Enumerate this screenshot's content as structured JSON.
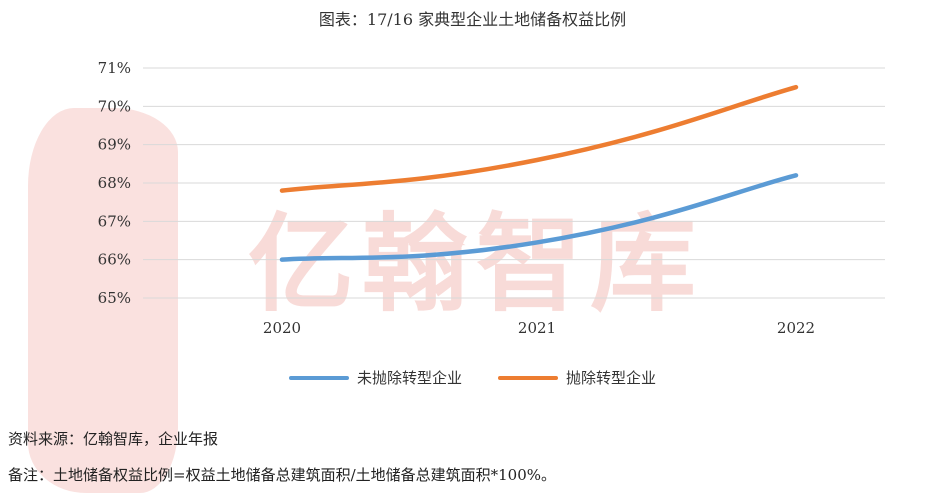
{
  "watermark": {
    "text": "亿翰智库"
  },
  "chart_data": {
    "type": "line",
    "title": "图表：17/16 家典型企业土地储备权益比例",
    "x": [
      "2020",
      "2021",
      "2022"
    ],
    "yticks": [
      "65%",
      "66%",
      "67%",
      "68%",
      "69%",
      "70%",
      "71%"
    ],
    "ylim": [
      65,
      71
    ],
    "grid": true,
    "legend_position": "bottom",
    "series": [
      {
        "name": "未抛除转型企业",
        "values": [
          66.0,
          66.45,
          68.2
        ],
        "color": "#5b9bd5"
      },
      {
        "name": "抛除转型企业",
        "values": [
          67.8,
          68.6,
          70.5
        ],
        "color": "#ed7d31"
      }
    ]
  },
  "notes": {
    "source": "资料来源：亿翰智库，企业年报",
    "remark": "备注：土地储备权益比例=权益土地储备总建筑面积/土地储备总建筑面积*100%。"
  }
}
